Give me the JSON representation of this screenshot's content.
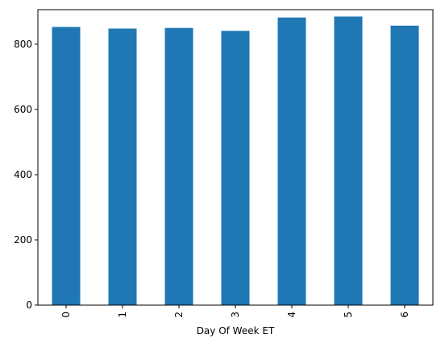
{
  "chart_data": {
    "type": "bar",
    "title": "",
    "xlabel": "Day Of Week ET",
    "ylabel": "",
    "categories": [
      "0",
      "1",
      "2",
      "3",
      "4",
      "5",
      "6"
    ],
    "values": [
      853,
      848,
      850,
      841,
      882,
      885,
      857
    ],
    "ylim": [
      0,
      906
    ],
    "yticks": [
      0,
      200,
      400,
      600,
      800
    ],
    "ytick_labels": [
      "0",
      "200",
      "400",
      "600",
      "800"
    ],
    "x_tick_rotation": "vertical",
    "bar_color": "#1f77b4",
    "grid": false,
    "legend": "none"
  }
}
